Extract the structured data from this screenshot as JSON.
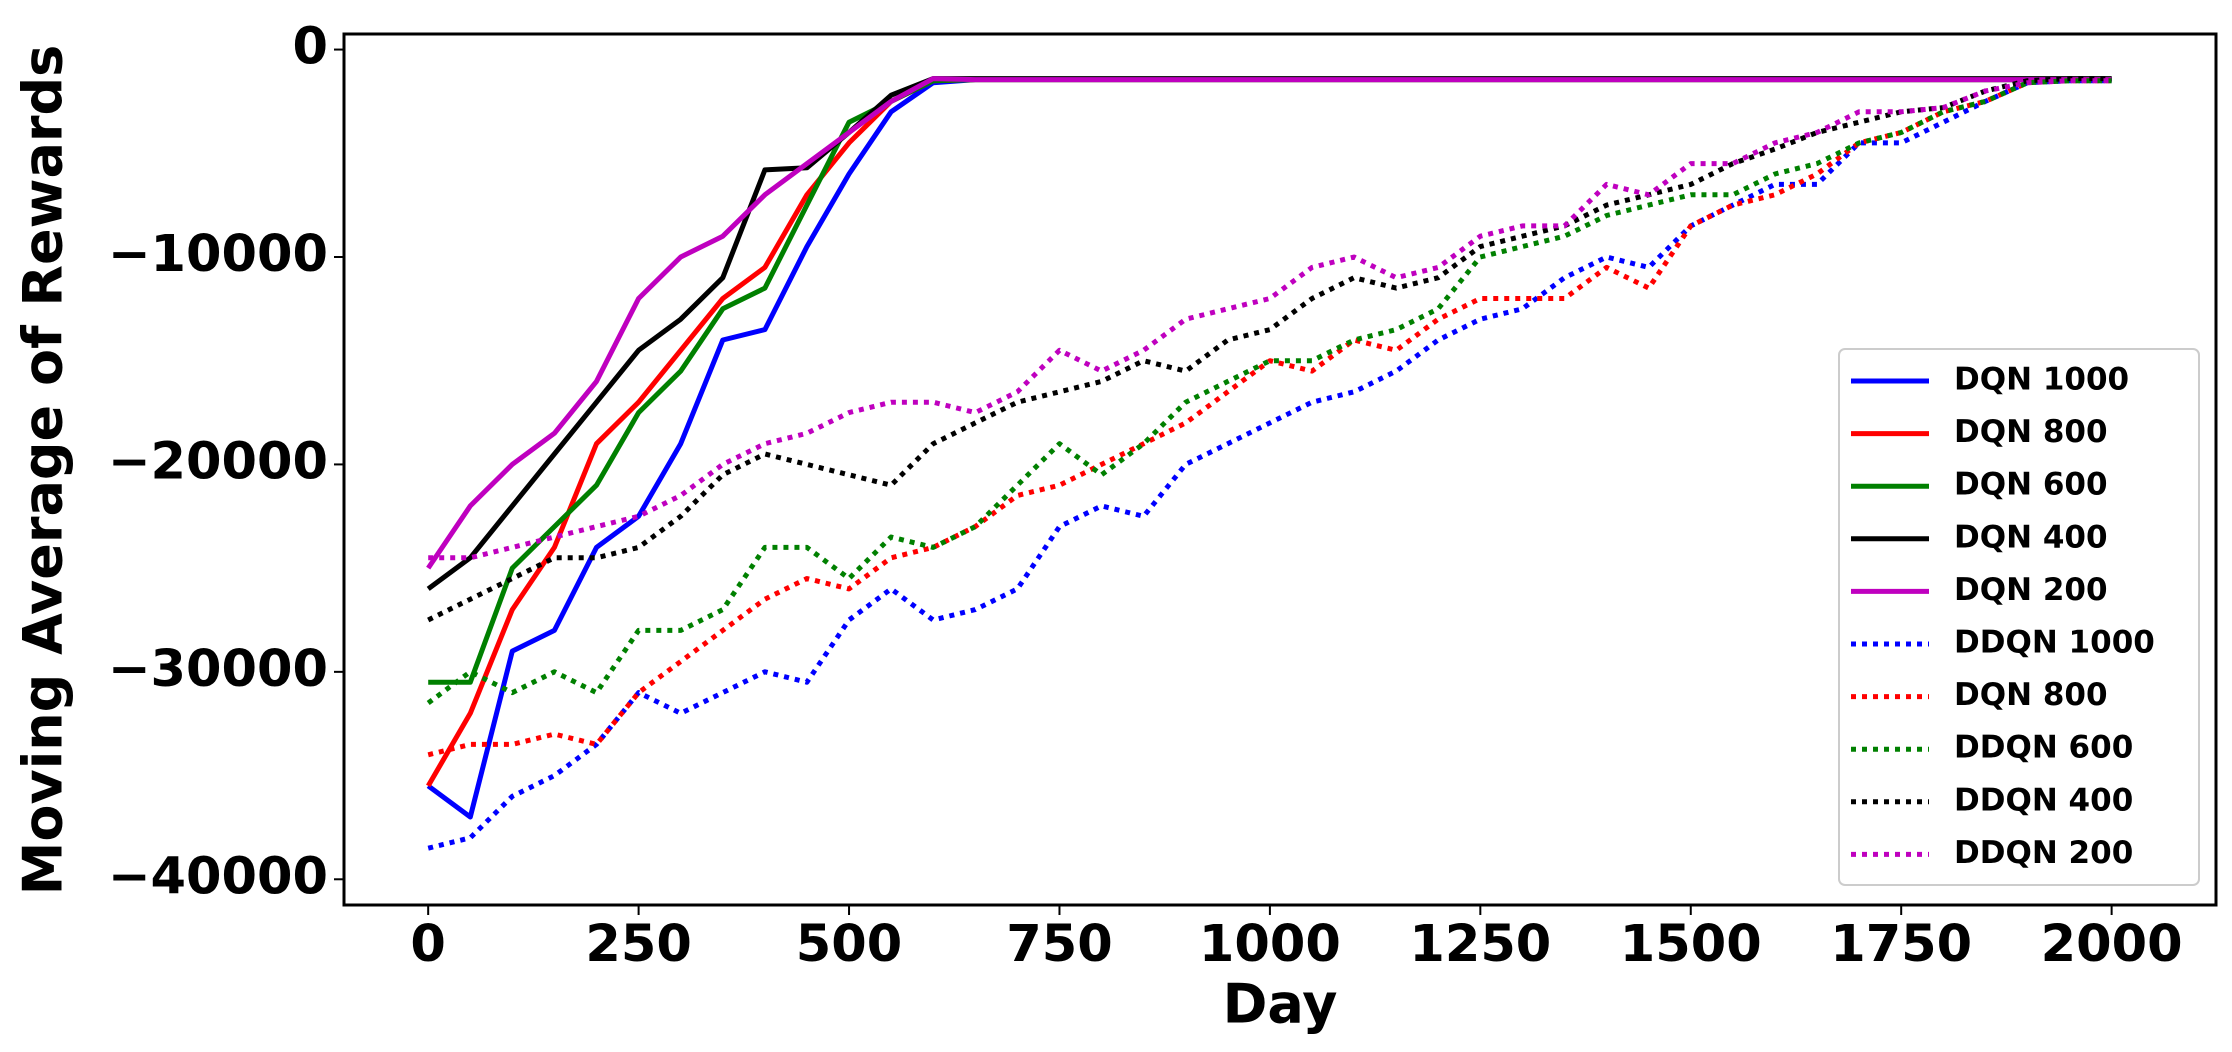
{
  "chart_data": {
    "type": "line",
    "xlabel": "Day",
    "ylabel": "Moving Average of Rewards",
    "x": [
      0,
      50,
      100,
      150,
      200,
      250,
      300,
      350,
      400,
      450,
      500,
      550,
      600,
      650,
      700,
      750,
      800,
      850,
      900,
      950,
      1000,
      1050,
      1100,
      1150,
      1200,
      1250,
      1300,
      1350,
      1400,
      1450,
      1500,
      1550,
      1600,
      1650,
      1700,
      1750,
      1800,
      1850,
      1900,
      1950,
      2000
    ],
    "xlim": [
      -100,
      2124
    ],
    "ylim": [
      -41240,
      750
    ],
    "xticks": [
      0,
      250,
      500,
      750,
      1000,
      1250,
      1500,
      1750,
      2000
    ],
    "yticks": [
      {
        "value": -40000,
        "label": "−40000"
      },
      {
        "value": -30000,
        "label": "−30000"
      },
      {
        "value": -20000,
        "label": "−20000"
      },
      {
        "value": -10000,
        "label": "−10000"
      },
      0
    ],
    "legend": "lower right",
    "series": [
      {
        "name": "DQN 1000",
        "color": "#0000ff",
        "linestyle": "solid",
        "values": [
          -35500,
          -37000,
          -29000,
          -28000,
          -24000,
          -22500,
          -19000,
          -14000,
          -13500,
          -9500,
          -6000,
          -3000,
          -1600,
          -1450,
          -1450,
          -1450,
          -1450,
          -1450,
          -1450,
          -1450,
          -1450,
          -1450,
          -1450,
          -1450,
          -1450,
          -1450,
          -1450,
          -1450,
          -1450,
          -1450,
          -1450,
          -1450,
          -1450,
          -1450,
          -1450,
          -1450,
          -1450,
          -1450,
          -1450,
          -1450,
          -1450
        ]
      },
      {
        "name": "DQN 800",
        "color": "#ff0000",
        "linestyle": "solid",
        "values": [
          -35500,
          -32000,
          -27000,
          -24000,
          -19000,
          -17000,
          -14500,
          -12000,
          -10500,
          -7000,
          -4500,
          -2500,
          -1500,
          -1450,
          -1450,
          -1450,
          -1450,
          -1450,
          -1450,
          -1450,
          -1450,
          -1450,
          -1450,
          -1450,
          -1450,
          -1450,
          -1450,
          -1450,
          -1450,
          -1450,
          -1450,
          -1450,
          -1450,
          -1450,
          -1450,
          -1450,
          -1450,
          -1450,
          -1450,
          -1450,
          -1450
        ]
      },
      {
        "name": "DQN 600",
        "color": "#008000",
        "linestyle": "solid",
        "values": [
          -30500,
          -30500,
          -25000,
          -23000,
          -21000,
          -17500,
          -15500,
          -12500,
          -11500,
          -7500,
          -3500,
          -2500,
          -1500,
          -1450,
          -1450,
          -1450,
          -1450,
          -1450,
          -1450,
          -1450,
          -1450,
          -1450,
          -1450,
          -1450,
          -1450,
          -1450,
          -1450,
          -1450,
          -1450,
          -1450,
          -1450,
          -1450,
          -1450,
          -1450,
          -1450,
          -1450,
          -1450,
          -1450,
          -1450,
          -1450,
          -1450
        ]
      },
      {
        "name": "DQN 400",
        "color": "#000000",
        "linestyle": "solid",
        "values": [
          -26000,
          -24500,
          -22000,
          -19500,
          -17000,
          -14500,
          -13000,
          -11000,
          -5800,
          -5700,
          -4000,
          -2200,
          -1400,
          -1400,
          -1400,
          -1400,
          -1400,
          -1400,
          -1400,
          -1400,
          -1400,
          -1400,
          -1400,
          -1400,
          -1400,
          -1400,
          -1400,
          -1400,
          -1400,
          -1400,
          -1400,
          -1400,
          -1400,
          -1400,
          -1400,
          -1400,
          -1400,
          -1400,
          -1400,
          -1400,
          -1400
        ]
      },
      {
        "name": "DQN 200",
        "color": "#bf00bf",
        "linestyle": "solid",
        "values": [
          -25000,
          -22000,
          -20000,
          -18500,
          -16000,
          -12000,
          -10000,
          -9000,
          -7000,
          -5500,
          -4000,
          -2500,
          -1400,
          -1450,
          -1450,
          -1450,
          -1450,
          -1450,
          -1450,
          -1450,
          -1450,
          -1450,
          -1450,
          -1450,
          -1450,
          -1450,
          -1450,
          -1450,
          -1450,
          -1450,
          -1450,
          -1450,
          -1450,
          -1450,
          -1450,
          -1450,
          -1450,
          -1450,
          -1450,
          -1450,
          -1450
        ]
      },
      {
        "name": "DDQN 1000",
        "color": "#0000ff",
        "linestyle": "dotted",
        "values": [
          -38500,
          -38000,
          -36000,
          -35000,
          -33500,
          -31000,
          -32000,
          -31000,
          -30000,
          -30500,
          -27500,
          -26000,
          -27500,
          -27000,
          -26000,
          -23000,
          -22000,
          -22500,
          -20000,
          -19000,
          -18000,
          -17000,
          -16500,
          -15500,
          -14000,
          -13000,
          -12500,
          -11000,
          -10000,
          -10500,
          -8500,
          -7500,
          -6500,
          -6500,
          -4500,
          -4500,
          -3500,
          -2500,
          -1600,
          -1500,
          -1500
        ]
      },
      {
        "name": "DQN 800",
        "color": "#ff0000",
        "linestyle": "dotted",
        "values": [
          -34000,
          -33500,
          -33500,
          -33000,
          -33500,
          -31000,
          -29500,
          -28000,
          -26500,
          -25500,
          -26000,
          -24500,
          -24000,
          -23000,
          -21500,
          -21000,
          -20000,
          -19000,
          -18000,
          -16500,
          -15000,
          -15500,
          -14000,
          -14500,
          -13000,
          -12000,
          -12000,
          -12000,
          -10500,
          -11500,
          -8500,
          -7500,
          -7000,
          -6000,
          -4500,
          -4000,
          -3000,
          -2500,
          -1600,
          -1500,
          -1500
        ]
      },
      {
        "name": "DDQN 600",
        "color": "#008000",
        "linestyle": "dotted",
        "values": [
          -31500,
          -30000,
          -31000,
          -30000,
          -31000,
          -28000,
          -28000,
          -27000,
          -24000,
          -24000,
          -25500,
          -23500,
          -24000,
          -23000,
          -21000,
          -19000,
          -20500,
          -19000,
          -17000,
          -16000,
          -15000,
          -15000,
          -14000,
          -13500,
          -12500,
          -10000,
          -9500,
          -9000,
          -8000,
          -7500,
          -7000,
          -7000,
          -6000,
          -5500,
          -4500,
          -4000,
          -3000,
          -2500,
          -1600,
          -1500,
          -1500
        ]
      },
      {
        "name": "DDQN 400",
        "color": "#000000",
        "linestyle": "dotted",
        "values": [
          -27500,
          -26500,
          -25500,
          -24500,
          -24500,
          -24000,
          -22500,
          -20500,
          -19500,
          -20000,
          -20500,
          -21000,
          -19000,
          -18000,
          -17000,
          -16500,
          -16000,
          -15000,
          -15500,
          -14000,
          -13500,
          -12000,
          -11000,
          -11500,
          -11000,
          -9500,
          -9000,
          -8500,
          -7500,
          -7000,
          -6500,
          -5500,
          -4800,
          -4000,
          -3500,
          -3000,
          -2800,
          -2000,
          -1500,
          -1400,
          -1400
        ]
      },
      {
        "name": "DDQN 200",
        "color": "#bf00bf",
        "linestyle": "dotted",
        "values": [
          -24500,
          -24500,
          -24000,
          -23500,
          -23000,
          -22500,
          -21500,
          -20000,
          -19000,
          -18500,
          -17500,
          -17000,
          -17000,
          -17500,
          -16500,
          -14500,
          -15500,
          -14500,
          -13000,
          -12500,
          -12000,
          -10500,
          -10000,
          -11000,
          -10500,
          -9000,
          -8500,
          -8500,
          -6500,
          -7000,
          -5500,
          -5500,
          -4500,
          -4000,
          -3000,
          -3000,
          -2800,
          -2000,
          -1600,
          -1500,
          -1500
        ]
      }
    ]
  }
}
